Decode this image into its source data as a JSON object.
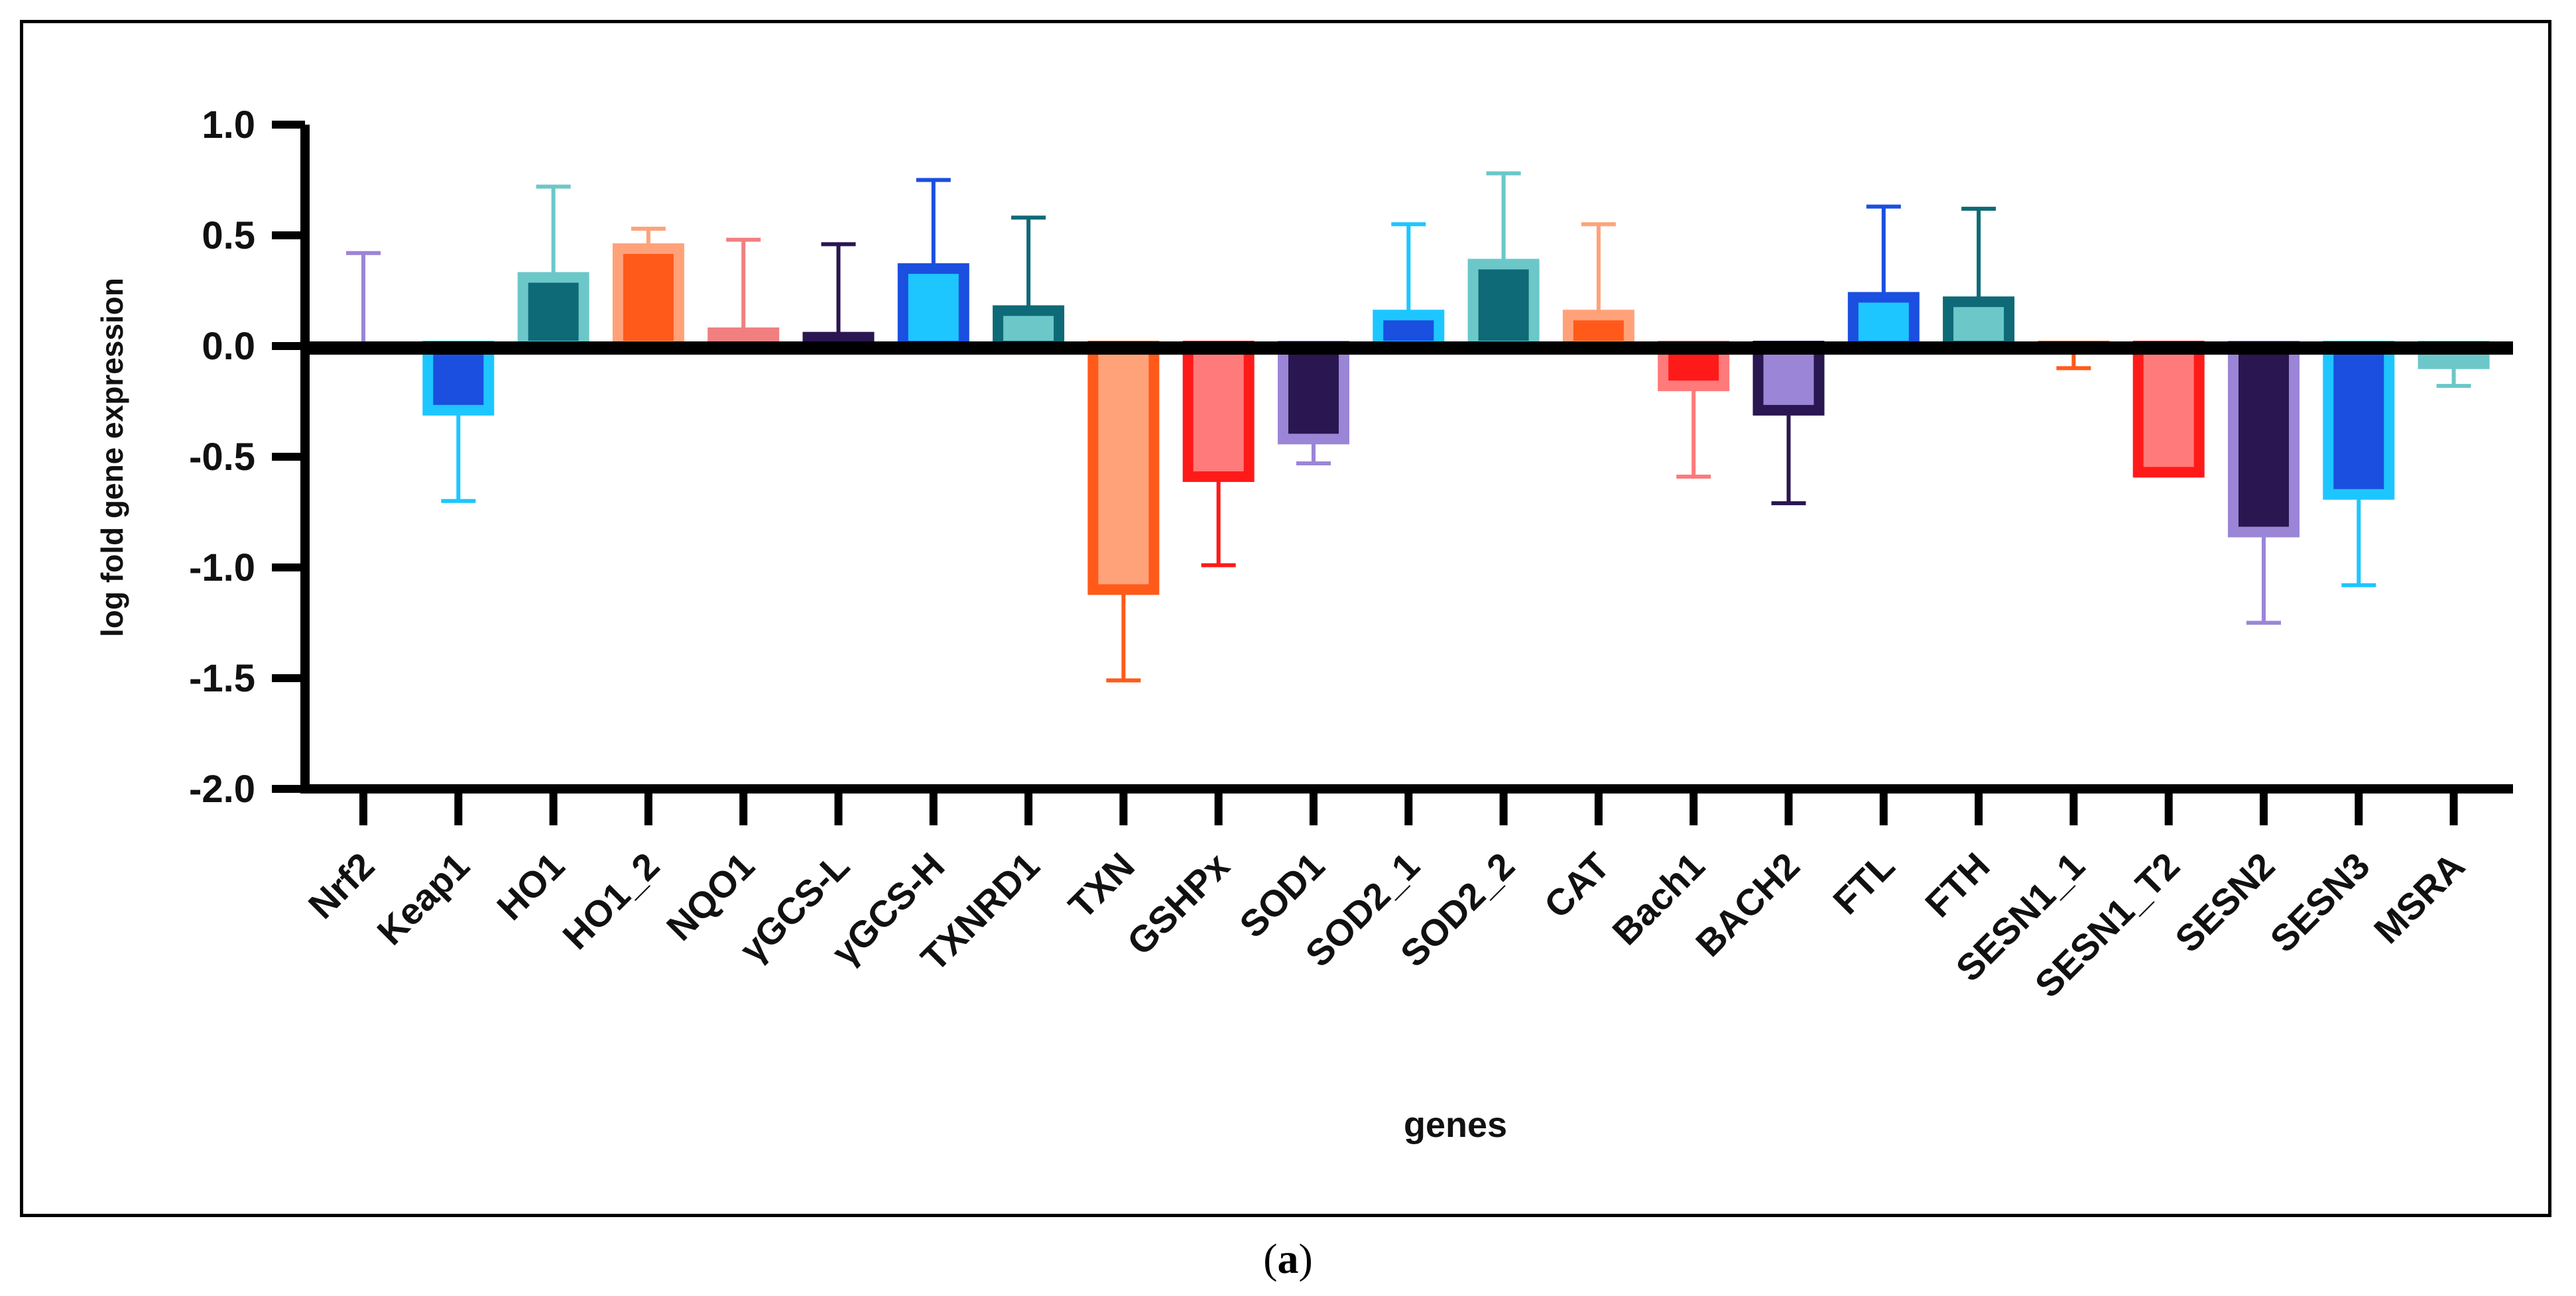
{
  "caption": {
    "open": "(",
    "letter": "a",
    "close": ")"
  },
  "chart_data": {
    "type": "bar",
    "title": "",
    "xlabel": "genes",
    "ylabel": "log fold gene expression",
    "ylim": [
      -2.0,
      1.0
    ],
    "yticks": [
      1.0,
      0.5,
      0.0,
      -0.5,
      -1.0,
      -1.5,
      -2.0
    ],
    "ytick_labels": [
      "1.0",
      "0.5",
      "0.0",
      "-0.5",
      "-1.0",
      "-1.5",
      "-2.0"
    ],
    "grid": false,
    "legend": "none",
    "categories": [
      "Nrf2",
      "Keap1",
      "HO1",
      "HO1_2",
      "NQO1",
      "γGCS-L",
      "γGCS-H",
      "TXNRD1",
      "TXN",
      "GSHPx",
      "SOD1",
      "SOD2_1",
      "SOD2_2",
      "CAT",
      "Bach1",
      "BACH2",
      "FTL",
      "FTH",
      "SESN1_1",
      "SESN1_T2",
      "SESN2",
      "SESN3",
      "MSRA"
    ],
    "values": [
      0.0,
      -0.29,
      0.31,
      0.44,
      0.06,
      0.04,
      0.35,
      0.16,
      -1.1,
      -0.59,
      -0.42,
      0.14,
      0.37,
      0.14,
      -0.18,
      -0.29,
      0.22,
      0.2,
      -0.01,
      -0.57,
      -0.84,
      -0.67,
      -0.08
    ],
    "error": [
      0.42,
      0.41,
      0.41,
      0.09,
      0.42,
      0.42,
      0.4,
      0.42,
      0.41,
      0.4,
      0.11,
      0.41,
      0.41,
      0.41,
      0.41,
      0.42,
      0.41,
      0.42,
      0.09,
      0.0,
      0.41,
      0.41,
      0.1
    ],
    "colors": {
      "fill": [
        "#9b85d6",
        "#1a4fe0",
        "#0e6a76",
        "#ff5a1a",
        "#f08080",
        "#2a1650",
        "#1ec6ff",
        "#6cc7c9",
        "#ffa27a",
        "#ff7a7a",
        "#2a1650",
        "#1a4fe0",
        "#0e6a76",
        "#ff5a1a",
        "#ff1a1a",
        "#9b85d6",
        "#1ec6ff",
        "#6cc7c9",
        "#ff5a1a",
        "#ff7a7a",
        "#2a1650",
        "#1a4fe0",
        "#6cc7c9"
      ],
      "edge": [
        "#9b85d6",
        "#1ec6ff",
        "#6cc7c9",
        "#ffa27a",
        "#f08080",
        "#2a1650",
        "#1a4fe0",
        "#0e6a76",
        "#ff5a1a",
        "#ff1a1a",
        "#9b85d6",
        "#1ec6ff",
        "#6cc7c9",
        "#ffa27a",
        "#ff7a7a",
        "#2a1650",
        "#1a4fe0",
        "#0e6a76",
        "#ff5a1a",
        "#ff1a1a",
        "#9b85d6",
        "#1ec6ff",
        "#6cc7c9"
      ]
    }
  }
}
